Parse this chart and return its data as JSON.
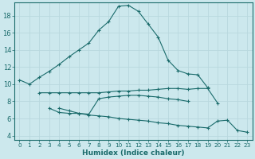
{
  "xlabel": "Humidex (Indice chaleur)",
  "xlim": [
    -0.5,
    23.5
  ],
  "ylim": [
    3.5,
    19.5
  ],
  "yticks": [
    4,
    6,
    8,
    10,
    12,
    14,
    16,
    18
  ],
  "xticks": [
    0,
    1,
    2,
    3,
    4,
    5,
    6,
    7,
    8,
    9,
    10,
    11,
    12,
    13,
    14,
    15,
    16,
    17,
    18,
    19,
    20,
    21,
    22,
    23
  ],
  "bg_color": "#cce8ed",
  "line_color": "#1a6b6b",
  "grid_color": "#b8d8de",
  "lines": [
    {
      "x": [
        0,
        1,
        2,
        3,
        4,
        5,
        6,
        7,
        8,
        9,
        10,
        11,
        12,
        13,
        14,
        15,
        16,
        17,
        18,
        19
      ],
      "y": [
        10.5,
        10.0,
        10.8,
        11.5,
        12.3,
        13.2,
        14.0,
        14.8,
        16.3,
        17.3,
        19.1,
        19.2,
        18.5,
        17.0,
        15.5,
        12.8,
        11.6,
        11.2,
        11.1,
        9.6
      ]
    },
    {
      "x": [
        2,
        3,
        4,
        5,
        6,
        7,
        8,
        9,
        10,
        11,
        12,
        13,
        14,
        15,
        16,
        17,
        18,
        19,
        20
      ],
      "y": [
        9.0,
        9.0,
        9.0,
        9.0,
        9.0,
        9.0,
        9.0,
        9.1,
        9.2,
        9.2,
        9.3,
        9.3,
        9.4,
        9.5,
        9.5,
        9.4,
        9.5,
        9.5,
        7.8
      ]
    },
    {
      "x": [
        3,
        4,
        5,
        6,
        7,
        8,
        9,
        10,
        11,
        12,
        13,
        14,
        15,
        16,
        17
      ],
      "y": [
        7.2,
        6.7,
        6.6,
        6.6,
        6.5,
        8.3,
        8.5,
        8.6,
        8.7,
        8.7,
        8.6,
        8.5,
        8.3,
        8.2,
        8.0
      ]
    },
    {
      "x": [
        4,
        5,
        6,
        7,
        8,
        9,
        10,
        11,
        12,
        13,
        14,
        15,
        16,
        17,
        18,
        19,
        20,
        21,
        22,
        23
      ],
      "y": [
        7.2,
        6.9,
        6.6,
        6.4,
        6.3,
        6.2,
        6.0,
        5.9,
        5.8,
        5.7,
        5.5,
        5.4,
        5.2,
        5.1,
        5.0,
        4.9,
        5.7,
        5.8,
        4.6,
        4.4
      ]
    }
  ]
}
